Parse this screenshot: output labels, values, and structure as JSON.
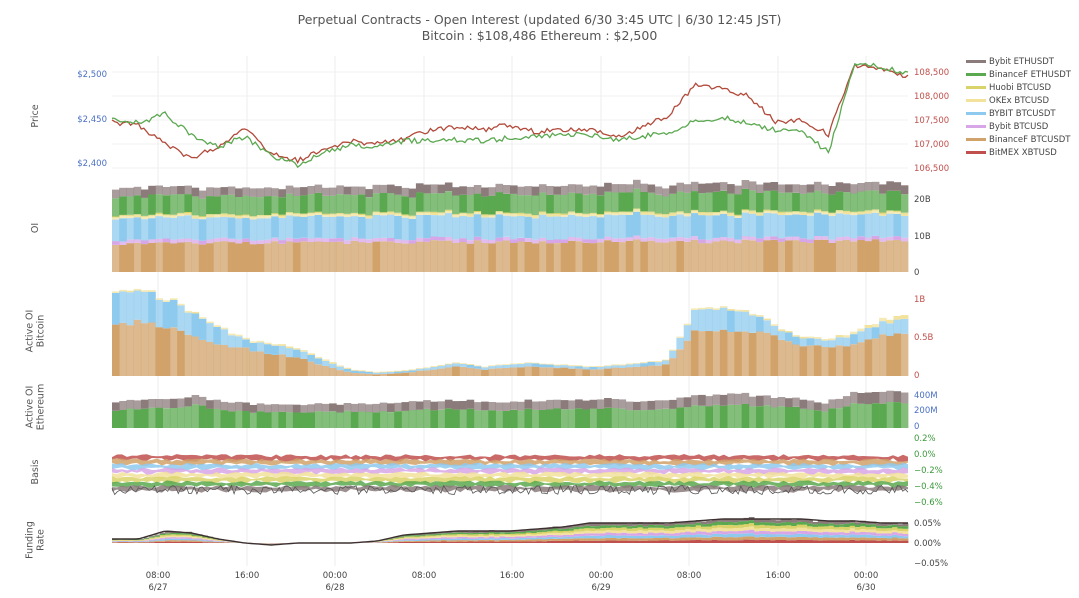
{
  "header": {
    "title": "Perpetual Contracts - Open Interest   (updated   6/30 3:45 UTC   |   6/30 12:45 JST)",
    "subtitle": "Bitcoin : $108,486    Ethereum : $2,500"
  },
  "chart_data": {
    "type": "line",
    "x_ticks": [
      "08:00\n6/27",
      "16:00",
      "00:00\n6/28",
      "08:00",
      "16:00",
      "00:00\n6/29",
      "08:00",
      "16:00",
      "00:00\n6/30"
    ],
    "legend": [
      {
        "name": "Bybit ETHUSDT",
        "color": "#8c7b7b"
      },
      {
        "name": "BinanceF ETHUSDT",
        "color": "#5aa84f"
      },
      {
        "name": "Huobi BTCUSD",
        "color": "#d9d36a"
      },
      {
        "name": "OKEx BTCUSD",
        "color": "#f2e29c"
      },
      {
        "name": "BYBIT BTCUSDT",
        "color": "#8ec9ee"
      },
      {
        "name": "Bybit BTCUSD",
        "color": "#d7a6e6"
      },
      {
        "name": "BinanceF BTCUSDT",
        "color": "#d1a26a"
      },
      {
        "name": "BitMEX XBTUSD",
        "color": "#c0504d"
      }
    ],
    "panels": [
      {
        "id": "price",
        "ylabel": "Price",
        "left_ticks": [
          "$2,500",
          "$2,450",
          "$2,400"
        ],
        "right_ticks": [
          "108,500",
          "108,000",
          "107,500",
          "107,000",
          "106,500"
        ],
        "series": [
          {
            "name": "Bitcoin",
            "axis": "right",
            "color": "#b24a3a",
            "values": [
              107450,
              107400,
              107000,
              106700,
              106950,
              107350,
              106800,
              106650,
              106900,
              107050,
              107000,
              107100,
              107300,
              107350,
              107300,
              107400,
              107250,
              107300,
              107300,
              107150,
              107350,
              107600,
              108250,
              108150,
              108000,
              107450,
              107500,
              107200,
              108650,
              108550,
              108400
            ]
          },
          {
            "name": "Ethereum",
            "axis": "left",
            "color": "#5aa84f",
            "values": [
              2448,
              2445,
              2455,
              2432,
              2418,
              2430,
              2408,
              2398,
              2412,
              2420,
              2418,
              2425,
              2425,
              2426,
              2425,
              2428,
              2430,
              2432,
              2432,
              2426,
              2430,
              2435,
              2448,
              2451,
              2445,
              2437,
              2435,
              2412,
              2512,
              2508,
              2500
            ]
          }
        ]
      },
      {
        "id": "oi",
        "ylabel": "OI",
        "right_ticks": [
          "20B",
          "10B",
          "0"
        ],
        "series": [
          {
            "name": "BinanceF BTCUSDT",
            "values": [
              8.0,
              8.0,
              8.1,
              8.0,
              8.1,
              8.2,
              8.1,
              8.2,
              8.2,
              8.3,
              8.3,
              8.4,
              8.4,
              8.4,
              8.3,
              8.3,
              8.4,
              8.4,
              8.5,
              8.5,
              8.6,
              8.6,
              8.5,
              8.5,
              8.6,
              8.6,
              8.6,
              8.5,
              8.7,
              8.7,
              8.7
            ]
          },
          {
            "name": "Bybit BTCUSD",
            "values": [
              1.0,
              1.0,
              1.0,
              1.0,
              1.0,
              1.0,
              1.0,
              1.0,
              1.0,
              1.0,
              1.0,
              1.0,
              1.0,
              1.0,
              1.0,
              1.0,
              1.0,
              1.0,
              1.0,
              1.0,
              1.0,
              1.0,
              1.0,
              1.0,
              1.0,
              1.0,
              1.0,
              1.0,
              1.0,
              1.0,
              1.0
            ]
          },
          {
            "name": "BYBIT BTCUSDT",
            "values": [
              6.3,
              6.3,
              6.2,
              6.2,
              6.1,
              6.1,
              6.0,
              6.1,
              6.1,
              6.2,
              6.2,
              6.2,
              6.2,
              6.3,
              6.2,
              6.2,
              6.3,
              6.3,
              6.3,
              6.4,
              6.3,
              6.3,
              6.4,
              6.4,
              6.3,
              6.3,
              6.3,
              6.4,
              6.4,
              6.3,
              6.3
            ]
          },
          {
            "name": "OKEx BTCUSD",
            "values": [
              0.6,
              0.6,
              0.6,
              0.6,
              0.6,
              0.6,
              0.6,
              0.6,
              0.6,
              0.6,
              0.6,
              0.6,
              0.6,
              0.6,
              0.6,
              0.6,
              0.6,
              0.6,
              0.6,
              0.6,
              0.6,
              0.6,
              0.6,
              0.6,
              0.6,
              0.6,
              0.6,
              0.6,
              0.6,
              0.6,
              0.6
            ]
          },
          {
            "name": "Huobi BTCUSD",
            "values": [
              0.3,
              0.3,
              0.3,
              0.3,
              0.3,
              0.3,
              0.3,
              0.3,
              0.3,
              0.3,
              0.3,
              0.3,
              0.3,
              0.3,
              0.3,
              0.3,
              0.3,
              0.3,
              0.3,
              0.3,
              0.3,
              0.3,
              0.3,
              0.3,
              0.3,
              0.3,
              0.3,
              0.3,
              0.3,
              0.3,
              0.3
            ]
          },
          {
            "name": "BinanceF ETHUSDT",
            "values": [
              5.3,
              5.3,
              5.4,
              5.2,
              5.1,
              5.2,
              5.0,
              5.0,
              5.1,
              5.1,
              5.1,
              5.2,
              5.2,
              5.2,
              5.1,
              5.1,
              5.2,
              5.2,
              5.3,
              5.3,
              5.3,
              5.2,
              5.4,
              5.5,
              5.5,
              5.3,
              5.3,
              5.2,
              5.4,
              5.4,
              5.4
            ]
          },
          {
            "name": "Bybit ETHUSDT",
            "values": [
              2.4,
              2.4,
              2.4,
              2.3,
              2.3,
              2.4,
              2.3,
              2.3,
              2.3,
              2.3,
              2.3,
              2.4,
              2.4,
              2.4,
              2.4,
              2.4,
              2.4,
              2.4,
              2.4,
              2.4,
              2.4,
              2.4,
              2.5,
              2.5,
              2.5,
              2.4,
              2.4,
              2.4,
              2.5,
              2.5,
              2.5
            ]
          }
        ]
      },
      {
        "id": "active_btc",
        "ylabel": "Active OI\nBitcoin",
        "right_ticks": [
          "1B",
          "0.5B",
          "0"
        ],
        "series": [
          {
            "name": "BinanceF BTCUSDT",
            "values": [
              0.68,
              0.67,
              0.6,
              0.5,
              0.4,
              0.34,
              0.28,
              0.22,
              0.12,
              0.04,
              0.02,
              0.04,
              0.08,
              0.12,
              0.08,
              0.1,
              0.12,
              0.1,
              0.08,
              0.1,
              0.12,
              0.14,
              0.55,
              0.58,
              0.58,
              0.5,
              0.4,
              0.35,
              0.38,
              0.5,
              0.55
            ]
          },
          {
            "name": "BYBIT BTCUSDT",
            "values": [
              0.4,
              0.38,
              0.34,
              0.28,
              0.2,
              0.1,
              0.12,
              0.1,
              0.06,
              0.03,
              0.02,
              0.02,
              0.03,
              0.04,
              0.03,
              0.04,
              0.04,
              0.03,
              0.03,
              0.03,
              0.04,
              0.05,
              0.25,
              0.28,
              0.24,
              0.12,
              0.1,
              0.08,
              0.12,
              0.15,
              0.18
            ]
          },
          {
            "name": "OKEx BTCUSD",
            "values": [
              0.02,
              0.02,
              0.02,
              0.02,
              0.02,
              0.02,
              0.02,
              0.02,
              0.02,
              0.01,
              0.01,
              0.01,
              0.01,
              0.01,
              0.01,
              0.01,
              0.01,
              0.01,
              0.01,
              0.01,
              0.01,
              0.01,
              0.02,
              0.02,
              0.02,
              0.02,
              0.02,
              0.02,
              0.03,
              0.04,
              0.05
            ]
          }
        ]
      },
      {
        "id": "active_eth",
        "ylabel": "Active OI\nEthereum",
        "right_ticks": [
          "400M",
          "200M",
          "0"
        ],
        "series": [
          {
            "name": "BinanceF ETHUSDT",
            "values": [
              190,
              200,
              215,
              240,
              190,
              170,
              165,
              160,
              170,
              175,
              170,
              180,
              195,
              200,
              190,
              185,
              195,
              200,
              200,
              205,
              195,
              190,
              230,
              245,
              245,
              220,
              215,
              180,
              250,
              260,
              255
            ]
          },
          {
            "name": "Bybit ETHUSDT",
            "values": [
              90,
              90,
              95,
              100,
              90,
              85,
              80,
              80,
              85,
              85,
              85,
              90,
              90,
              95,
              90,
              90,
              90,
              95,
              95,
              95,
              90,
              90,
              110,
              115,
              110,
              100,
              95,
              80,
              115,
              120,
              118
            ]
          }
        ]
      },
      {
        "id": "basis",
        "ylabel": "Basis",
        "right_ticks": [
          "0.2%",
          "0.0%",
          "−0.2%",
          "−0.4%",
          "−0.6%"
        ],
        "ylim": [
          -0.7,
          0.25
        ]
      },
      {
        "id": "funding",
        "ylabel": "Funding\nRate",
        "right_ticks": [
          "0.05%",
          "0.00%",
          "−0.05%"
        ],
        "total": [
          0.01,
          0.01,
          0.03,
          0.025,
          0.01,
          0.0,
          -0.005,
          0.0,
          0.0,
          0.0,
          0.005,
          0.02,
          0.025,
          0.03,
          0.03,
          0.03,
          0.035,
          0.04,
          0.05,
          0.05,
          0.05,
          0.05,
          0.055,
          0.06,
          0.06,
          0.06,
          0.06,
          0.055,
          0.055,
          0.05,
          0.05
        ]
      }
    ]
  }
}
